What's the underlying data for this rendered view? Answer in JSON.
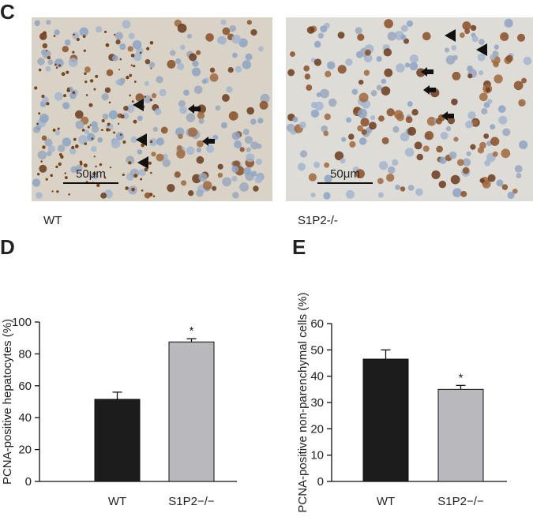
{
  "panel_c": {
    "letter": "C",
    "images": [
      {
        "label": "WT",
        "scale_bar": "50μm"
      },
      {
        "label": "S1P2-/-",
        "scale_bar": "50μm"
      }
    ]
  },
  "chart_data": [
    {
      "type": "bar",
      "panel": "D",
      "y_label": "PCNA-positive hepatocytes (%)",
      "categories": [
        "WT",
        "S1P2−/−"
      ],
      "values": [
        51.5,
        87.5
      ],
      "errors": [
        4.5,
        2
      ],
      "colors": [
        "#1c1c1c",
        "#b9b9bd"
      ],
      "ylim": [
        0,
        100
      ],
      "yticks": [
        0,
        20,
        40,
        60,
        80,
        100
      ],
      "annotations": [
        {
          "text": "*",
          "x": "S1P2−/−"
        }
      ]
    },
    {
      "type": "bar",
      "panel": "E",
      "y_label": "PCNA-positive non-parenchymal cells (%)",
      "categories": [
        "WT",
        "S1P2−/−"
      ],
      "values": [
        46.5,
        35
      ],
      "errors": [
        3.5,
        1.5
      ],
      "colors": [
        "#1c1c1c",
        "#b9b9bd"
      ],
      "ylim": [
        0,
        60
      ],
      "yticks": [
        0,
        10,
        20,
        30,
        40,
        50,
        60
      ],
      "annotations": [
        {
          "text": "*",
          "x": "S1P2−/−"
        }
      ]
    }
  ]
}
